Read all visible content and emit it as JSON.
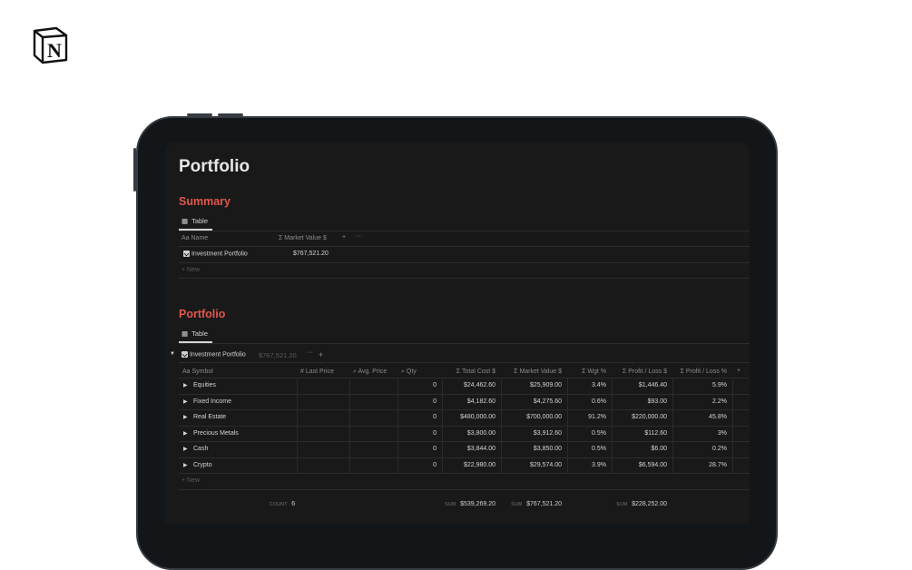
{
  "logo": {
    "text": "N",
    "icon": "notion-logo"
  },
  "page": {
    "title": "Portfolio"
  },
  "summary": {
    "heading": "Summary",
    "view_tab": "Table",
    "columns": {
      "name": "Aa Name",
      "market_value": "Market Value $"
    },
    "rows": [
      {
        "name": "Investment Portfolio",
        "market_value": "$767,521.20"
      }
    ],
    "new_label": "New"
  },
  "portfolio": {
    "heading": "Portfolio",
    "view_tab": "Table",
    "group": {
      "name": "Investment Portfolio",
      "total": "$767,521.20"
    },
    "columns": [
      "Aa Symbol",
      "Last Price",
      "Avg. Price",
      "Qty",
      "Total Cost $",
      "Market Value $",
      "Wgt %",
      "Profit / Loss $",
      "Profit / Loss %"
    ],
    "rows": [
      {
        "symbol": "Equities",
        "qty": "0",
        "total_cost": "$24,462.60",
        "market_value": "$25,909.00",
        "wgt": "3.4%",
        "pl": "$1,446.40",
        "pl_pct": "5.9%"
      },
      {
        "symbol": "Fixed Income",
        "qty": "0",
        "total_cost": "$4,182.60",
        "market_value": "$4,275.60",
        "wgt": "0.6%",
        "pl": "$93.00",
        "pl_pct": "2.2%"
      },
      {
        "symbol": "Real Estate",
        "qty": "0",
        "total_cost": "$480,000.00",
        "market_value": "$700,000.00",
        "wgt": "91.2%",
        "pl": "$220,000.00",
        "pl_pct": "45.8%"
      },
      {
        "symbol": "Precious Metals",
        "qty": "0",
        "total_cost": "$3,800.00",
        "market_value": "$3,912.60",
        "wgt": "0.5%",
        "pl": "$112.60",
        "pl_pct": "3%"
      },
      {
        "symbol": "Cash",
        "qty": "0",
        "total_cost": "$3,844.00",
        "market_value": "$3,850.00",
        "wgt": "0.5%",
        "pl": "$6.00",
        "pl_pct": "0.2%"
      },
      {
        "symbol": "Crypto",
        "qty": "0",
        "total_cost": "$22,980.00",
        "market_value": "$29,574.00",
        "wgt": "3.9%",
        "pl": "$6,594.00",
        "pl_pct": "28.7%"
      }
    ],
    "new_label": "New",
    "footer": {
      "count_label": "COUNT",
      "count": "6",
      "sum_label": "SUM",
      "total_cost_sum": "$539,269.20",
      "market_value_sum": "$767,521.20",
      "pl_sum": "$228,252.00"
    }
  },
  "colors": {
    "accent": "#e0574c",
    "background": "#191919",
    "device": "#131618"
  }
}
